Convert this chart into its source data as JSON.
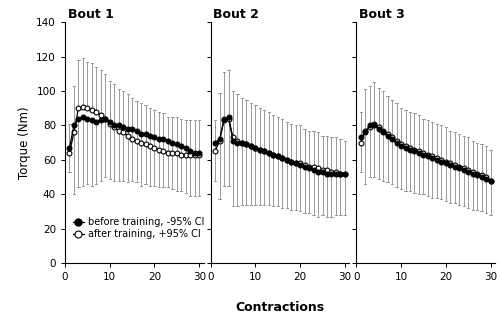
{
  "xlabel": "Contractions",
  "ylabel": "Torque (Nm)",
  "ylim": [
    0,
    140
  ],
  "yticks": [
    0,
    20,
    40,
    60,
    80,
    100,
    120,
    140
  ],
  "xlim": [
    0,
    31
  ],
  "xticks": [
    0,
    10,
    20,
    30
  ],
  "bout_labels": [
    "Bout 1",
    "Bout 2",
    "Bout 3"
  ],
  "legend_before": "before training, -95% CI",
  "legend_after": "after training, +95% CI",
  "contractions": [
    1,
    2,
    3,
    4,
    5,
    6,
    7,
    8,
    9,
    10,
    11,
    12,
    13,
    14,
    15,
    16,
    17,
    18,
    19,
    20,
    21,
    22,
    23,
    24,
    25,
    26,
    27,
    28,
    29,
    30
  ],
  "before_b1": [
    67,
    80,
    84,
    85,
    84,
    83,
    82,
    83,
    84,
    82,
    80,
    80,
    79,
    78,
    78,
    77,
    75,
    75,
    74,
    73,
    72,
    72,
    71,
    70,
    69,
    68,
    67,
    65,
    64,
    64
  ],
  "after_b1": [
    64,
    76,
    90,
    91,
    90,
    89,
    88,
    86,
    84,
    81,
    79,
    77,
    76,
    74,
    72,
    71,
    70,
    69,
    68,
    67,
    66,
    65,
    64,
    64,
    64,
    63,
    63,
    63,
    63,
    63
  ],
  "ci_before_b1": [
    14,
    40,
    40,
    40,
    38,
    38,
    36,
    35,
    34,
    33,
    32,
    32,
    31,
    31,
    30,
    30,
    30,
    29,
    29,
    28,
    28,
    28,
    27,
    27,
    27,
    26,
    26,
    26,
    25,
    25
  ],
  "ci_after_b1": [
    17,
    27,
    28,
    28,
    27,
    27,
    26,
    26,
    26,
    25,
    25,
    24,
    24,
    24,
    24,
    23,
    23,
    23,
    22,
    22,
    22,
    22,
    21,
    21,
    21,
    21,
    20,
    20,
    20,
    20
  ],
  "before_b2": [
    70,
    72,
    83,
    85,
    71,
    70,
    70,
    69,
    68,
    67,
    66,
    65,
    64,
    63,
    62,
    61,
    60,
    59,
    58,
    57,
    56,
    55,
    54,
    53,
    53,
    52,
    52,
    52,
    52,
    52
  ],
  "after_b2": [
    65,
    71,
    84,
    84,
    73,
    71,
    70,
    69,
    68,
    67,
    66,
    65,
    64,
    63,
    62,
    61,
    60,
    59,
    58,
    58,
    57,
    56,
    56,
    55,
    54,
    54,
    53,
    53,
    52,
    52
  ],
  "ci_before_b2": [
    22,
    35,
    38,
    40,
    38,
    37,
    36,
    35,
    34,
    33,
    32,
    31,
    30,
    30,
    29,
    29,
    28,
    28,
    27,
    27,
    27,
    26,
    26,
    26,
    25,
    25,
    25,
    24,
    24,
    24
  ],
  "ci_after_b2": [
    18,
    28,
    27,
    28,
    27,
    27,
    26,
    26,
    25,
    25,
    24,
    24,
    24,
    23,
    23,
    23,
    22,
    22,
    22,
    22,
    21,
    21,
    21,
    21,
    20,
    20,
    20,
    20,
    20,
    19
  ],
  "before_b3": [
    73,
    76,
    80,
    80,
    78,
    76,
    74,
    72,
    70,
    68,
    67,
    66,
    65,
    64,
    63,
    62,
    61,
    60,
    59,
    58,
    57,
    56,
    55,
    54,
    53,
    52,
    51,
    50,
    49,
    48
  ],
  "after_b3": [
    70,
    77,
    79,
    81,
    79,
    77,
    75,
    73,
    71,
    69,
    68,
    67,
    66,
    65,
    64,
    63,
    62,
    61,
    60,
    59,
    58,
    57,
    56,
    55,
    54,
    53,
    52,
    51,
    50,
    48
  ],
  "ci_before_b3": [
    20,
    30,
    30,
    30,
    29,
    28,
    27,
    26,
    26,
    25,
    25,
    24,
    24,
    24,
    23,
    23,
    23,
    22,
    22,
    22,
    22,
    21,
    21,
    21,
    21,
    21,
    20,
    20,
    20,
    20
  ],
  "ci_after_b3": [
    18,
    24,
    24,
    24,
    23,
    23,
    22,
    22,
    22,
    21,
    21,
    21,
    21,
    21,
    20,
    20,
    20,
    20,
    20,
    20,
    19,
    19,
    19,
    19,
    19,
    18,
    18,
    18,
    18,
    18
  ],
  "color_line": "#000000",
  "color_ci": "#999999",
  "bg_color": "#ffffff"
}
